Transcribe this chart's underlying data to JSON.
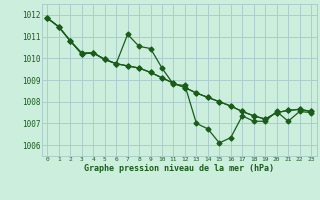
{
  "title": "Graphe pression niveau de la mer (hPa)",
  "bg_color": "#cceedd",
  "grid_color": "#aacccc",
  "line_color": "#1a5c1a",
  "xlim": [
    -0.5,
    23.5
  ],
  "ylim": [
    1005.5,
    1012.5
  ],
  "xticks": [
    0,
    1,
    2,
    3,
    4,
    5,
    6,
    7,
    8,
    9,
    10,
    11,
    12,
    13,
    14,
    15,
    16,
    17,
    18,
    19,
    20,
    21,
    22,
    23
  ],
  "yticks": [
    1006,
    1007,
    1008,
    1009,
    1010,
    1011,
    1012
  ],
  "series1_x": [
    0,
    1,
    2,
    3,
    4,
    5,
    6,
    7,
    8,
    9,
    10,
    11,
    12,
    13,
    14,
    15,
    16,
    17,
    18,
    19,
    20,
    21,
    22,
    23
  ],
  "series1_y": [
    1011.85,
    1011.45,
    1010.8,
    1010.25,
    1010.25,
    1009.95,
    1009.75,
    1009.65,
    1009.55,
    1009.35,
    1009.1,
    1008.85,
    1008.65,
    1008.4,
    1008.2,
    1008.0,
    1007.8,
    1007.55,
    1007.35,
    1007.2,
    1007.5,
    1007.6,
    1007.65,
    1007.55
  ],
  "series2_x": [
    0,
    1,
    2,
    3,
    4,
    5,
    6,
    7,
    8,
    9,
    10,
    11,
    12,
    13,
    14,
    15,
    16,
    17,
    18,
    19,
    20,
    21,
    22,
    23
  ],
  "series2_y": [
    1011.85,
    1011.45,
    1010.8,
    1010.2,
    1010.25,
    1009.95,
    1009.75,
    1011.1,
    1010.55,
    1010.45,
    1009.55,
    1008.8,
    1008.75,
    1007.0,
    1006.75,
    1006.1,
    1006.35,
    1007.35,
    1007.1,
    1007.1,
    1007.55,
    1007.1,
    1007.55,
    1007.5
  ],
  "series3_x": [
    0,
    1,
    2,
    3,
    4,
    5,
    6,
    7,
    8,
    9,
    10,
    11,
    12,
    13,
    14,
    15,
    16,
    17,
    18,
    19,
    20,
    21,
    22,
    23
  ],
  "series3_y": [
    1011.85,
    1011.45,
    1010.8,
    1010.2,
    1010.25,
    1009.95,
    1009.75,
    1009.65,
    1009.55,
    1009.35,
    1009.1,
    1008.85,
    1008.65,
    1008.4,
    1008.2,
    1008.0,
    1007.8,
    1007.55,
    1007.35,
    1007.2,
    1007.5,
    1007.6,
    1007.65,
    1007.55
  ]
}
